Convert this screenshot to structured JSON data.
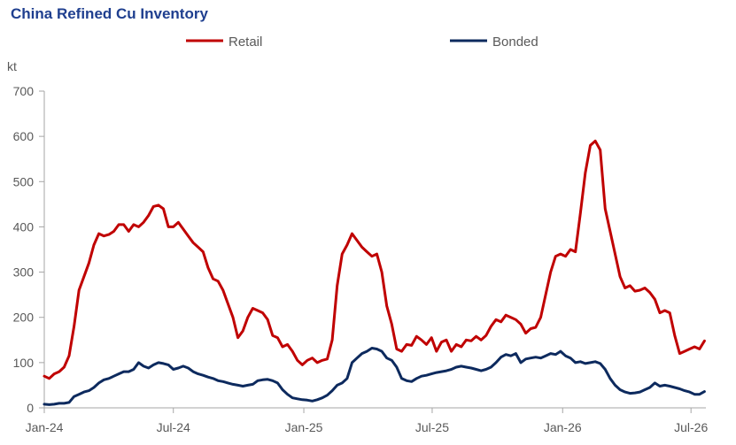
{
  "chart_data": {
    "type": "line",
    "title": "China Refined Cu Inventory",
    "ylabel": "kt",
    "xlabel": "",
    "ylim": [
      0,
      700
    ],
    "yticks": [
      "0",
      "100",
      "200",
      "300",
      "400",
      "500",
      "600",
      "700"
    ],
    "xticks": [
      "Jan-24",
      "Jul-24",
      "Jan-25",
      "Jul-25",
      "Jan-26",
      "Jul-26"
    ],
    "grid": false,
    "legend_position": "top",
    "series": [
      {
        "name": "Retail",
        "color": "#c00000",
        "points": [
          [
            "2024-01-01",
            70
          ],
          [
            "2024-01-08",
            65
          ],
          [
            "2024-01-15",
            75
          ],
          [
            "2024-01-22",
            80
          ],
          [
            "2024-01-29",
            90
          ],
          [
            "2024-02-05",
            115
          ],
          [
            "2024-02-12",
            180
          ],
          [
            "2024-02-19",
            260
          ],
          [
            "2024-02-26",
            290
          ],
          [
            "2024-03-04",
            320
          ],
          [
            "2024-03-11",
            360
          ],
          [
            "2024-03-18",
            385
          ],
          [
            "2024-03-25",
            380
          ],
          [
            "2024-04-01",
            383
          ],
          [
            "2024-04-08",
            390
          ],
          [
            "2024-04-15",
            405
          ],
          [
            "2024-04-22",
            405
          ],
          [
            "2024-04-29",
            390
          ],
          [
            "2024-05-06",
            405
          ],
          [
            "2024-05-13",
            400
          ],
          [
            "2024-05-20",
            410
          ],
          [
            "2024-05-27",
            425
          ],
          [
            "2024-06-03",
            445
          ],
          [
            "2024-06-10",
            448
          ],
          [
            "2024-06-17",
            440
          ],
          [
            "2024-06-24",
            400
          ],
          [
            "2024-07-01",
            400
          ],
          [
            "2024-07-08",
            410
          ],
          [
            "2024-07-15",
            395
          ],
          [
            "2024-07-22",
            380
          ],
          [
            "2024-07-29",
            365
          ],
          [
            "2024-08-05",
            355
          ],
          [
            "2024-08-12",
            345
          ],
          [
            "2024-08-19",
            310
          ],
          [
            "2024-08-26",
            285
          ],
          [
            "2024-09-02",
            280
          ],
          [
            "2024-09-09",
            260
          ],
          [
            "2024-09-16",
            230
          ],
          [
            "2024-09-23",
            200
          ],
          [
            "2024-09-30",
            155
          ],
          [
            "2024-10-07",
            170
          ],
          [
            "2024-10-14",
            200
          ],
          [
            "2024-10-21",
            220
          ],
          [
            "2024-10-28",
            215
          ],
          [
            "2024-11-04",
            210
          ],
          [
            "2024-11-11",
            195
          ],
          [
            "2024-11-18",
            160
          ],
          [
            "2024-11-25",
            155
          ],
          [
            "2024-12-02",
            135
          ],
          [
            "2024-12-09",
            140
          ],
          [
            "2024-12-16",
            125
          ],
          [
            "2024-12-23",
            105
          ],
          [
            "2024-12-30",
            95
          ],
          [
            "2025-01-06",
            105
          ],
          [
            "2025-01-13",
            110
          ],
          [
            "2025-01-20",
            100
          ],
          [
            "2025-01-27",
            105
          ],
          [
            "2025-02-03",
            108
          ],
          [
            "2025-02-10",
            150
          ],
          [
            "2025-02-17",
            270
          ],
          [
            "2025-02-24",
            340
          ],
          [
            "2025-03-03",
            360
          ],
          [
            "2025-03-10",
            385
          ],
          [
            "2025-03-17",
            370
          ],
          [
            "2025-03-24",
            355
          ],
          [
            "2025-03-31",
            345
          ],
          [
            "2025-04-07",
            335
          ],
          [
            "2025-04-14",
            340
          ],
          [
            "2025-04-21",
            300
          ],
          [
            "2025-04-28",
            225
          ],
          [
            "2025-05-05",
            185
          ],
          [
            "2025-05-12",
            130
          ],
          [
            "2025-05-19",
            125
          ],
          [
            "2025-05-26",
            140
          ],
          [
            "2025-06-02",
            138
          ],
          [
            "2025-06-09",
            158
          ],
          [
            "2025-06-16",
            150
          ],
          [
            "2025-06-23",
            140
          ],
          [
            "2025-06-30",
            155
          ],
          [
            "2025-07-07",
            125
          ],
          [
            "2025-07-14",
            145
          ],
          [
            "2025-07-21",
            150
          ],
          [
            "2025-07-28",
            125
          ],
          [
            "2025-08-04",
            140
          ],
          [
            "2025-08-11",
            135
          ],
          [
            "2025-08-18",
            150
          ],
          [
            "2025-08-25",
            148
          ],
          [
            "2025-09-01",
            158
          ],
          [
            "2025-09-08",
            150
          ],
          [
            "2025-09-15",
            160
          ],
          [
            "2025-09-22",
            180
          ],
          [
            "2025-09-29",
            195
          ],
          [
            "2025-10-06",
            190
          ],
          [
            "2025-10-13",
            205
          ],
          [
            "2025-10-20",
            200
          ],
          [
            "2025-10-27",
            195
          ],
          [
            "2025-11-03",
            185
          ],
          [
            "2025-11-10",
            165
          ],
          [
            "2025-11-17",
            175
          ],
          [
            "2025-11-24",
            178
          ],
          [
            "2025-12-01",
            200
          ],
          [
            "2025-12-08",
            250
          ],
          [
            "2025-12-15",
            300
          ],
          [
            "2025-12-22",
            335
          ],
          [
            "2025-12-29",
            340
          ],
          [
            "2026-01-05",
            335
          ],
          [
            "2026-01-12",
            350
          ],
          [
            "2026-01-19",
            345
          ],
          [
            "2026-01-26",
            430
          ],
          [
            "2026-02-02",
            520
          ],
          [
            "2026-02-09",
            580
          ],
          [
            "2026-02-16",
            590
          ],
          [
            "2026-02-23",
            570
          ],
          [
            "2026-03-02",
            440
          ],
          [
            "2026-03-09",
            390
          ],
          [
            "2026-03-16",
            340
          ],
          [
            "2026-03-23",
            290
          ],
          [
            "2026-03-30",
            265
          ],
          [
            "2026-04-06",
            270
          ],
          [
            "2026-04-13",
            258
          ],
          [
            "2026-04-20",
            260
          ],
          [
            "2026-04-27",
            265
          ],
          [
            "2026-05-04",
            255
          ],
          [
            "2026-05-11",
            240
          ],
          [
            "2026-05-18",
            210
          ],
          [
            "2026-05-25",
            215
          ],
          [
            "2026-06-01",
            210
          ],
          [
            "2026-06-08",
            160
          ],
          [
            "2026-06-15",
            120
          ],
          [
            "2026-06-22",
            125
          ],
          [
            "2026-06-29",
            130
          ],
          [
            "2026-07-06",
            135
          ],
          [
            "2026-07-13",
            130
          ],
          [
            "2026-07-20",
            148
          ]
        ]
      },
      {
        "name": "Bonded",
        "color": "#0d2a5e",
        "points": [
          [
            "2024-01-01",
            8
          ],
          [
            "2024-01-08",
            7
          ],
          [
            "2024-01-15",
            8
          ],
          [
            "2024-01-22",
            10
          ],
          [
            "2024-01-29",
            10
          ],
          [
            "2024-02-05",
            12
          ],
          [
            "2024-02-12",
            25
          ],
          [
            "2024-02-19",
            30
          ],
          [
            "2024-02-26",
            35
          ],
          [
            "2024-03-04",
            38
          ],
          [
            "2024-03-11",
            45
          ],
          [
            "2024-03-18",
            55
          ],
          [
            "2024-03-25",
            62
          ],
          [
            "2024-04-01",
            65
          ],
          [
            "2024-04-08",
            70
          ],
          [
            "2024-04-15",
            75
          ],
          [
            "2024-04-22",
            80
          ],
          [
            "2024-04-29",
            80
          ],
          [
            "2024-05-06",
            85
          ],
          [
            "2024-05-13",
            100
          ],
          [
            "2024-05-20",
            92
          ],
          [
            "2024-05-27",
            88
          ],
          [
            "2024-06-03",
            95
          ],
          [
            "2024-06-10",
            100
          ],
          [
            "2024-06-17",
            98
          ],
          [
            "2024-06-24",
            95
          ],
          [
            "2024-07-01",
            85
          ],
          [
            "2024-07-08",
            88
          ],
          [
            "2024-07-15",
            92
          ],
          [
            "2024-07-22",
            88
          ],
          [
            "2024-07-29",
            80
          ],
          [
            "2024-08-05",
            75
          ],
          [
            "2024-08-12",
            72
          ],
          [
            "2024-08-19",
            68
          ],
          [
            "2024-08-26",
            65
          ],
          [
            "2024-09-02",
            60
          ],
          [
            "2024-09-09",
            58
          ],
          [
            "2024-09-16",
            55
          ],
          [
            "2024-09-23",
            52
          ],
          [
            "2024-09-30",
            50
          ],
          [
            "2024-10-07",
            48
          ],
          [
            "2024-10-14",
            50
          ],
          [
            "2024-10-21",
            52
          ],
          [
            "2024-10-28",
            60
          ],
          [
            "2024-11-04",
            62
          ],
          [
            "2024-11-11",
            63
          ],
          [
            "2024-11-18",
            60
          ],
          [
            "2024-11-25",
            55
          ],
          [
            "2024-12-02",
            40
          ],
          [
            "2024-12-09",
            30
          ],
          [
            "2024-12-16",
            22
          ],
          [
            "2024-12-23",
            20
          ],
          [
            "2024-12-30",
            18
          ],
          [
            "2025-01-06",
            17
          ],
          [
            "2025-01-13",
            15
          ],
          [
            "2025-01-20",
            18
          ],
          [
            "2025-01-27",
            22
          ],
          [
            "2025-02-03",
            28
          ],
          [
            "2025-02-10",
            38
          ],
          [
            "2025-02-17",
            50
          ],
          [
            "2025-02-24",
            55
          ],
          [
            "2025-03-03",
            65
          ],
          [
            "2025-03-10",
            100
          ],
          [
            "2025-03-17",
            110
          ],
          [
            "2025-03-24",
            120
          ],
          [
            "2025-03-31",
            125
          ],
          [
            "2025-04-07",
            132
          ],
          [
            "2025-04-14",
            130
          ],
          [
            "2025-04-21",
            125
          ],
          [
            "2025-04-28",
            110
          ],
          [
            "2025-05-05",
            105
          ],
          [
            "2025-05-12",
            90
          ],
          [
            "2025-05-19",
            65
          ],
          [
            "2025-05-26",
            60
          ],
          [
            "2025-06-02",
            58
          ],
          [
            "2025-06-09",
            65
          ],
          [
            "2025-06-16",
            70
          ],
          [
            "2025-06-23",
            72
          ],
          [
            "2025-06-30",
            75
          ],
          [
            "2025-07-07",
            78
          ],
          [
            "2025-07-14",
            80
          ],
          [
            "2025-07-21",
            82
          ],
          [
            "2025-07-28",
            85
          ],
          [
            "2025-08-04",
            90
          ],
          [
            "2025-08-11",
            92
          ],
          [
            "2025-08-18",
            90
          ],
          [
            "2025-08-25",
            88
          ],
          [
            "2025-09-01",
            85
          ],
          [
            "2025-09-08",
            82
          ],
          [
            "2025-09-15",
            85
          ],
          [
            "2025-09-22",
            90
          ],
          [
            "2025-09-29",
            100
          ],
          [
            "2025-10-06",
            112
          ],
          [
            "2025-10-13",
            118
          ],
          [
            "2025-10-20",
            115
          ],
          [
            "2025-10-27",
            120
          ],
          [
            "2025-11-03",
            100
          ],
          [
            "2025-11-10",
            108
          ],
          [
            "2025-11-17",
            110
          ],
          [
            "2025-11-24",
            112
          ],
          [
            "2025-12-01",
            110
          ],
          [
            "2025-12-08",
            115
          ],
          [
            "2025-12-15",
            120
          ],
          [
            "2025-12-22",
            118
          ],
          [
            "2025-12-29",
            125
          ],
          [
            "2026-01-05",
            115
          ],
          [
            "2026-01-12",
            110
          ],
          [
            "2026-01-19",
            100
          ],
          [
            "2026-01-26",
            102
          ],
          [
            "2026-02-02",
            98
          ],
          [
            "2026-02-09",
            100
          ],
          [
            "2026-02-16",
            102
          ],
          [
            "2026-02-23",
            98
          ],
          [
            "2026-03-02",
            85
          ],
          [
            "2026-03-09",
            65
          ],
          [
            "2026-03-16",
            50
          ],
          [
            "2026-03-23",
            40
          ],
          [
            "2026-03-30",
            35
          ],
          [
            "2026-04-06",
            32
          ],
          [
            "2026-04-13",
            33
          ],
          [
            "2026-04-20",
            35
          ],
          [
            "2026-04-27",
            40
          ],
          [
            "2026-05-04",
            45
          ],
          [
            "2026-05-11",
            55
          ],
          [
            "2026-05-18",
            48
          ],
          [
            "2026-05-25",
            50
          ],
          [
            "2026-06-01",
            48
          ],
          [
            "2026-06-08",
            45
          ],
          [
            "2026-06-15",
            42
          ],
          [
            "2026-06-22",
            38
          ],
          [
            "2026-06-29",
            35
          ],
          [
            "2026-07-06",
            30
          ],
          [
            "2026-07-13",
            30
          ],
          [
            "2026-07-20",
            36
          ]
        ]
      }
    ]
  }
}
